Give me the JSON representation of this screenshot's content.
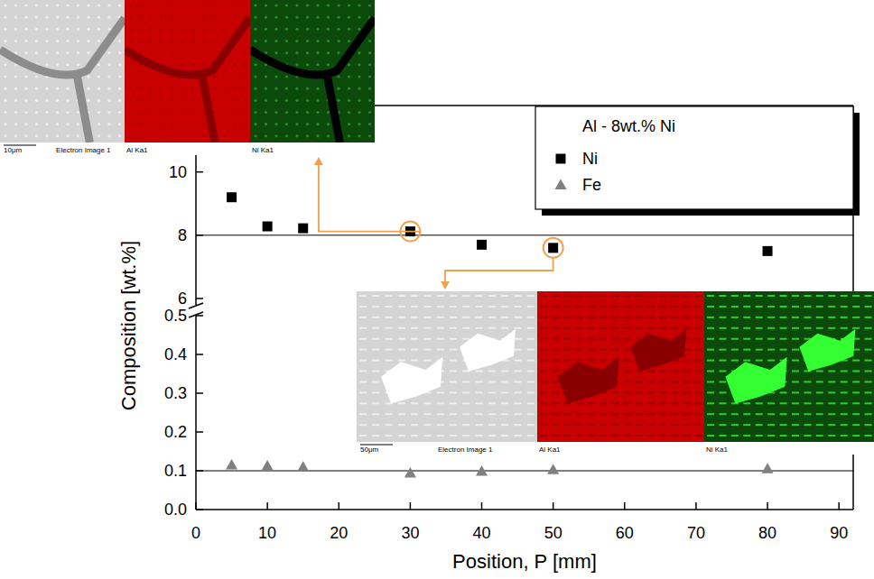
{
  "chart_data": [
    {
      "type": "scatter",
      "title": "Al - 8wt.% Ni",
      "ylabel": "Composition [wt.%]",
      "xlim": [
        0,
        92
      ],
      "ylim": [
        5.8,
        12.1
      ],
      "yticks": [
        6,
        8,
        10
      ],
      "tick_labels": "y",
      "legend": "upper right",
      "hlines": [
        8
      ],
      "series": [
        {
          "name": "Ni",
          "color": "#000000",
          "marker": "square",
          "x": [
            5,
            10,
            15,
            30,
            40,
            50,
            80
          ],
          "values": [
            9.2,
            8.28,
            8.22,
            8.12,
            7.7,
            7.6,
            7.5
          ]
        }
      ],
      "insets": [
        {
          "point": 3,
          "scale_bar": "10μm",
          "caption": "Electron Image 1",
          "maps": [
            "Al Ka1",
            "Ni Ka1"
          ]
        },
        {
          "point": 5,
          "scale_bar": "50μm",
          "caption": "Electron Image 1",
          "maps": [
            "Al Ka1",
            "Ni Ka1"
          ]
        }
      ]
    },
    {
      "type": "scatter",
      "xlabel": "Position, P [mm]",
      "xlim": [
        0,
        92
      ],
      "xticks": [
        0,
        10,
        20,
        30,
        40,
        50,
        60,
        70,
        80,
        90
      ],
      "ylim": [
        0,
        0.5
      ],
      "yticks": [
        {
          "value": 0,
          "label": "0.0"
        },
        {
          "value": 0.1,
          "label": "0.1"
        },
        {
          "value": 0.2,
          "label": "0.2"
        },
        {
          "value": 0.3,
          "label": "0.3"
        },
        {
          "value": 0.4,
          "label": "0.4"
        },
        {
          "value": 0.5,
          "label": "0.5"
        }
      ],
      "hlines": [
        0.1
      ],
      "series": [
        {
          "name": "Fe",
          "color": "#808080",
          "marker": "triangle",
          "x": [
            5,
            10,
            15,
            30,
            40,
            50,
            80
          ],
          "values": [
            0.115,
            0.113,
            0.11,
            0.094,
            0.099,
            0.103,
            0.105
          ]
        }
      ]
    }
  ]
}
